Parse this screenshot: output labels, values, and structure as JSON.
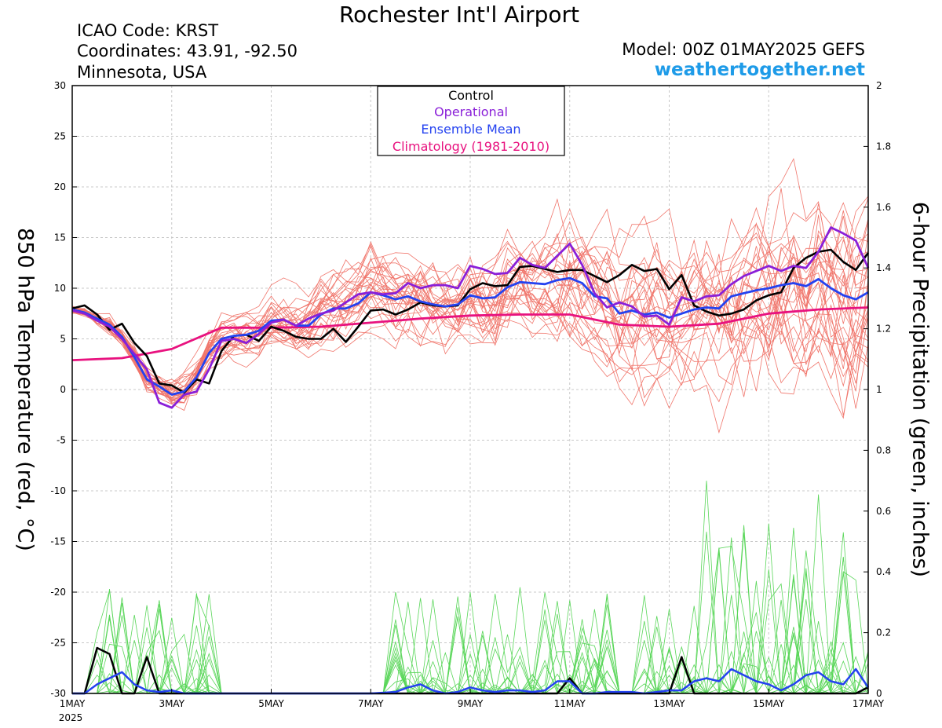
{
  "header": {
    "title": "Rochester Int'l Airport",
    "icao": "ICAO Code: KRST",
    "coordinates": "Coordinates: 43.91, -92.50",
    "location": "Minnesota, USA",
    "model": "Model: 00Z 01MAY2025 GEFS",
    "brand": "weathertogether.net"
  },
  "colors": {
    "members_temp": "#f0756b",
    "members_precip": "#59d659",
    "control": "#000000",
    "operational": "#8a1fd8",
    "ensemble_mean": "#2442f0",
    "climatology": "#e8127f",
    "brand": "#1e9be8"
  },
  "chart_data": {
    "type": "line",
    "title": "Rochester Int'l Airport",
    "y_left_label": "850 hPa Temperature (red, °C)",
    "y_right_label": "6-hour Precipitation (green, inches)",
    "x_unit": "days since 1MAY 2025 00Z",
    "x_range": [
      0,
      16
    ],
    "y_left_range": [
      -30,
      30
    ],
    "y_left_ticks": [
      -30,
      -25,
      -20,
      -15,
      -10,
      -5,
      0,
      5,
      10,
      15,
      20,
      25,
      30
    ],
    "y_right_range": [
      0,
      2
    ],
    "y_right_ticks": [
      "0",
      "0.2",
      "0.4",
      "0.6",
      "0.8",
      "1",
      "1.2",
      "1.4",
      "1.6",
      "1.8",
      "2"
    ],
    "x_ticks": [
      {
        "x": 0,
        "label": "1MAY",
        "sub": "2025"
      },
      {
        "x": 2,
        "label": "3MAY"
      },
      {
        "x": 4,
        "label": "5MAY"
      },
      {
        "x": 6,
        "label": "7MAY"
      },
      {
        "x": 8,
        "label": "9MAY"
      },
      {
        "x": 10,
        "label": "11MAY"
      },
      {
        "x": 12,
        "label": "13MAY"
      },
      {
        "x": 14,
        "label": "15MAY"
      },
      {
        "x": 16,
        "label": "17MAY"
      }
    ],
    "legend": [
      {
        "label": "Control",
        "key": "control"
      },
      {
        "label": "Operational",
        "key": "operational"
      },
      {
        "label": "Ensemble Mean",
        "key": "ensemble_mean"
      },
      {
        "label": "Climatology (1981-2010)",
        "key": "climatology"
      }
    ],
    "temp_series": {
      "climatology": {
        "x": [
          0,
          1,
          2,
          3,
          3.5,
          4,
          5,
          6,
          7,
          8,
          9,
          10,
          11,
          12,
          13,
          14,
          15,
          16
        ],
        "y": [
          2.9,
          3.1,
          4.0,
          6.1,
          6.1,
          6.1,
          6.2,
          6.6,
          7.0,
          7.3,
          7.4,
          7.4,
          6.4,
          6.2,
          6.5,
          7.5,
          7.9,
          8.1
        ]
      },
      "control": {
        "x": [
          0,
          0.25,
          0.5,
          0.75,
          1,
          1.25,
          1.5,
          1.75,
          2,
          2.25,
          2.5,
          2.75,
          3,
          3.25,
          3.5,
          3.75,
          4,
          4.25,
          4.5,
          4.75,
          5,
          5.25,
          5.5,
          5.75,
          6,
          6.25,
          6.5,
          6.75,
          7,
          7.25,
          7.5,
          7.75,
          8,
          8.25,
          8.5,
          8.75,
          9,
          9.25,
          9.5,
          9.75,
          10,
          10.25,
          10.5,
          10.75,
          11,
          11.25,
          11.5,
          11.75,
          12,
          12.25,
          12.5,
          12.75,
          13,
          13.25,
          13.5,
          13.75,
          14,
          14.25,
          14.5,
          14.75,
          15,
          15.25,
          15.5,
          15.75,
          16
        ],
        "y": [
          8.0,
          8.3,
          7.4,
          5.9,
          6.5,
          4.6,
          3.3,
          0.6,
          0.4,
          -0.3,
          1.0,
          0.6,
          3.8,
          5.3,
          5.4,
          4.8,
          6.2,
          5.8,
          5.2,
          5.0,
          5.0,
          6.0,
          4.7,
          6.2,
          7.8,
          7.9,
          7.4,
          7.9,
          8.6,
          8.3,
          8.2,
          8.3,
          9.9,
          10.5,
          10.2,
          10.3,
          12.1,
          12.2,
          11.9,
          11.6,
          11.8,
          11.8,
          11.2,
          10.6,
          11.3,
          12.3,
          11.7,
          11.9,
          9.9,
          11.3,
          8.3,
          7.7,
          7.3,
          7.5,
          7.9,
          8.8,
          9.3,
          9.6,
          12.0,
          13.0,
          13.6,
          13.8,
          12.6,
          11.8,
          13.5
        ]
      },
      "operational": {
        "x": [
          0,
          0.25,
          0.5,
          0.75,
          1,
          1.25,
          1.5,
          1.75,
          2,
          2.25,
          2.5,
          2.75,
          3,
          3.25,
          3.5,
          3.75,
          4,
          4.25,
          4.5,
          4.75,
          5,
          5.25,
          5.5,
          5.75,
          6,
          6.25,
          6.5,
          6.75,
          7,
          7.25,
          7.5,
          7.75,
          8,
          8.25,
          8.5,
          8.75,
          9,
          9.25,
          9.5,
          9.75,
          10,
          10.25,
          10.5,
          10.75,
          11,
          11.25,
          11.5,
          11.75,
          12,
          12.25,
          12.5,
          12.75,
          13,
          13.25,
          13.5,
          13.75,
          14,
          14.25,
          14.5,
          14.75,
          15,
          15.25,
          15.5,
          15.75,
          16
        ],
        "y": [
          7.8,
          7.5,
          6.8,
          6.2,
          5.0,
          3.5,
          2.0,
          -1.3,
          -1.8,
          -0.5,
          -0.2,
          2.0,
          4.8,
          5.0,
          4.6,
          5.5,
          6.6,
          6.9,
          6.3,
          7.0,
          7.5,
          7.8,
          8.6,
          9.4,
          9.6,
          9.4,
          9.5,
          10.5,
          10.0,
          10.3,
          10.3,
          10.0,
          12.2,
          11.9,
          11.4,
          11.5,
          13.0,
          12.3,
          12.0,
          13.2,
          14.4,
          12.3,
          9.5,
          8.1,
          8.6,
          8.2,
          7.2,
          7.3,
          6.4,
          9.1,
          8.7,
          9.2,
          9.3,
          10.4,
          11.2,
          11.7,
          12.2,
          11.7,
          12.2,
          12.0,
          13.6,
          16.0,
          15.4,
          14.7,
          12.0
        ]
      },
      "ensemble_mean": {
        "x": [
          0,
          0.25,
          0.5,
          0.75,
          1,
          1.25,
          1.5,
          1.75,
          2,
          2.25,
          2.5,
          2.75,
          3,
          3.25,
          3.5,
          3.75,
          4,
          4.25,
          4.5,
          4.75,
          5,
          5.25,
          5.5,
          5.75,
          6,
          6.25,
          6.5,
          6.75,
          7,
          7.25,
          7.5,
          7.75,
          8,
          8.25,
          8.5,
          8.75,
          9,
          9.25,
          9.5,
          9.75,
          10,
          10.25,
          10.5,
          10.75,
          11,
          11.25,
          11.5,
          11.75,
          12,
          12.25,
          12.5,
          12.75,
          13,
          13.25,
          13.5,
          13.75,
          14,
          14.25,
          14.5,
          14.75,
          15,
          15.25,
          15.5,
          15.75,
          16
        ],
        "y": [
          7.9,
          7.6,
          7.0,
          6.4,
          5.2,
          3.2,
          1.0,
          0.3,
          -0.5,
          -0.2,
          1.2,
          3.6,
          5.0,
          5.3,
          5.4,
          5.8,
          6.8,
          6.9,
          6.3,
          6.3,
          7.4,
          8.0,
          8.0,
          8.5,
          9.6,
          9.3,
          8.9,
          9.2,
          8.7,
          8.4,
          8.2,
          8.4,
          9.3,
          9.0,
          9.1,
          10.1,
          10.6,
          10.5,
          10.4,
          10.8,
          11.0,
          10.5,
          9.2,
          9.0,
          7.5,
          7.8,
          7.4,
          7.6,
          7.1,
          7.5,
          7.9,
          8.1,
          8.0,
          9.2,
          9.5,
          9.8,
          10.0,
          10.3,
          10.5,
          10.2,
          10.9,
          10.0,
          9.3,
          8.9,
          9.6
        ]
      }
    },
    "precip_series": {
      "control": {
        "x": [
          0,
          0.25,
          0.5,
          0.75,
          1,
          1.25,
          1.5,
          1.75,
          2,
          2.25,
          2.5,
          2.75,
          3,
          6,
          7,
          8,
          9,
          9.75,
          10,
          10.25,
          11,
          11.75,
          12,
          12.25,
          12.5,
          13,
          14,
          15,
          15.75,
          16
        ],
        "y": [
          0,
          0,
          0.15,
          0.13,
          0,
          0,
          0.12,
          0,
          0,
          0,
          0,
          0,
          0,
          0,
          0,
          0,
          0,
          0,
          0.05,
          0,
          0,
          0,
          0,
          0.12,
          0,
          0,
          0,
          0,
          0,
          0.02
        ]
      },
      "ensemble_mean": {
        "x": [
          0,
          0.25,
          0.5,
          0.75,
          1,
          1.25,
          1.5,
          1.75,
          2,
          2.25,
          2.5,
          2.75,
          3,
          4,
          5,
          6,
          6.5,
          6.75,
          7,
          7.25,
          7.5,
          7.75,
          8,
          8.25,
          8.5,
          8.75,
          9,
          9.25,
          9.5,
          9.75,
          10,
          10.25,
          10.5,
          10.75,
          11,
          11.25,
          11.5,
          11.75,
          12,
          12.25,
          12.5,
          12.75,
          13,
          13.25,
          13.5,
          13.75,
          14,
          14.25,
          14.5,
          14.75,
          15,
          15.25,
          15.5,
          15.75,
          16
        ],
        "y": [
          0,
          0,
          0.03,
          0.05,
          0.07,
          0.03,
          0.01,
          0.005,
          0.01,
          0,
          0,
          0,
          0,
          0,
          0,
          0,
          0.005,
          0.02,
          0.03,
          0.01,
          0,
          0.005,
          0.02,
          0.01,
          0.005,
          0.01,
          0.01,
          0.005,
          0.01,
          0.04,
          0.04,
          0,
          0,
          0.005,
          0.005,
          0.005,
          0,
          0.005,
          0.01,
          0.01,
          0.04,
          0.05,
          0.04,
          0.08,
          0.06,
          0.04,
          0.03,
          0.01,
          0.03,
          0.06,
          0.07,
          0.04,
          0.03,
          0.08,
          0.02
        ]
      }
    }
  }
}
